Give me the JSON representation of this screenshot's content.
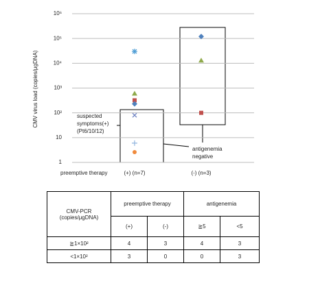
{
  "chart_data": {
    "type": "scatter",
    "y_label": "CMV virus load (copies/μgDNA)",
    "x_label": "preemptive therapy",
    "categories": [
      "(+) (n=7)",
      "(-) (n=3)"
    ],
    "log_y": true,
    "grid": true,
    "ylim": [
      1,
      1000000
    ],
    "yticks": [
      1,
      10,
      {
        "value": 100,
        "label": "10²"
      },
      {
        "value": 1000,
        "label": "10³"
      },
      {
        "value": 10000,
        "label": "10⁴"
      },
      {
        "value": 100000,
        "label": "10⁵"
      },
      {
        "value": 1000000,
        "label": "10⁶"
      }
    ],
    "series": [
      {
        "marker": "star",
        "color": "#4a9bd4",
        "values": [
          30000,
          null
        ]
      },
      {
        "marker": "triangle",
        "color": "#8faa4c",
        "values": [
          600,
          13000
        ]
      },
      {
        "marker": "square",
        "color": "#c0504d",
        "values": [
          320,
          100
        ]
      },
      {
        "marker": "diamond",
        "color": "#4f81bd",
        "values": [
          230,
          120000
        ]
      },
      {
        "marker": "x",
        "color": "#6a7fc0",
        "values": [
          80,
          null
        ]
      },
      {
        "marker": "plus",
        "color": "#8fb4de",
        "values": [
          6,
          null
        ]
      },
      {
        "marker": "circle",
        "color": "#f08a3c",
        "values": [
          2.6,
          null
        ]
      }
    ],
    "annotations": [
      [
        "suspected",
        "symptoms(+)",
        "(Pt6/10/12)"
      ],
      [
        "antigenemia",
        "negative"
      ]
    ]
  },
  "table": {
    "corner": [
      "CMV-PCR",
      "(copies/μgDNA)"
    ],
    "groups": [
      "preemptive therapy",
      "antigenemia"
    ],
    "subheaders": [
      "(+)",
      "(-)",
      "≧5",
      "<5"
    ],
    "rows": [
      [
        "≧1×10²",
        4,
        3,
        4,
        3
      ],
      [
        "<1×10²",
        3,
        0,
        0,
        3
      ]
    ]
  }
}
